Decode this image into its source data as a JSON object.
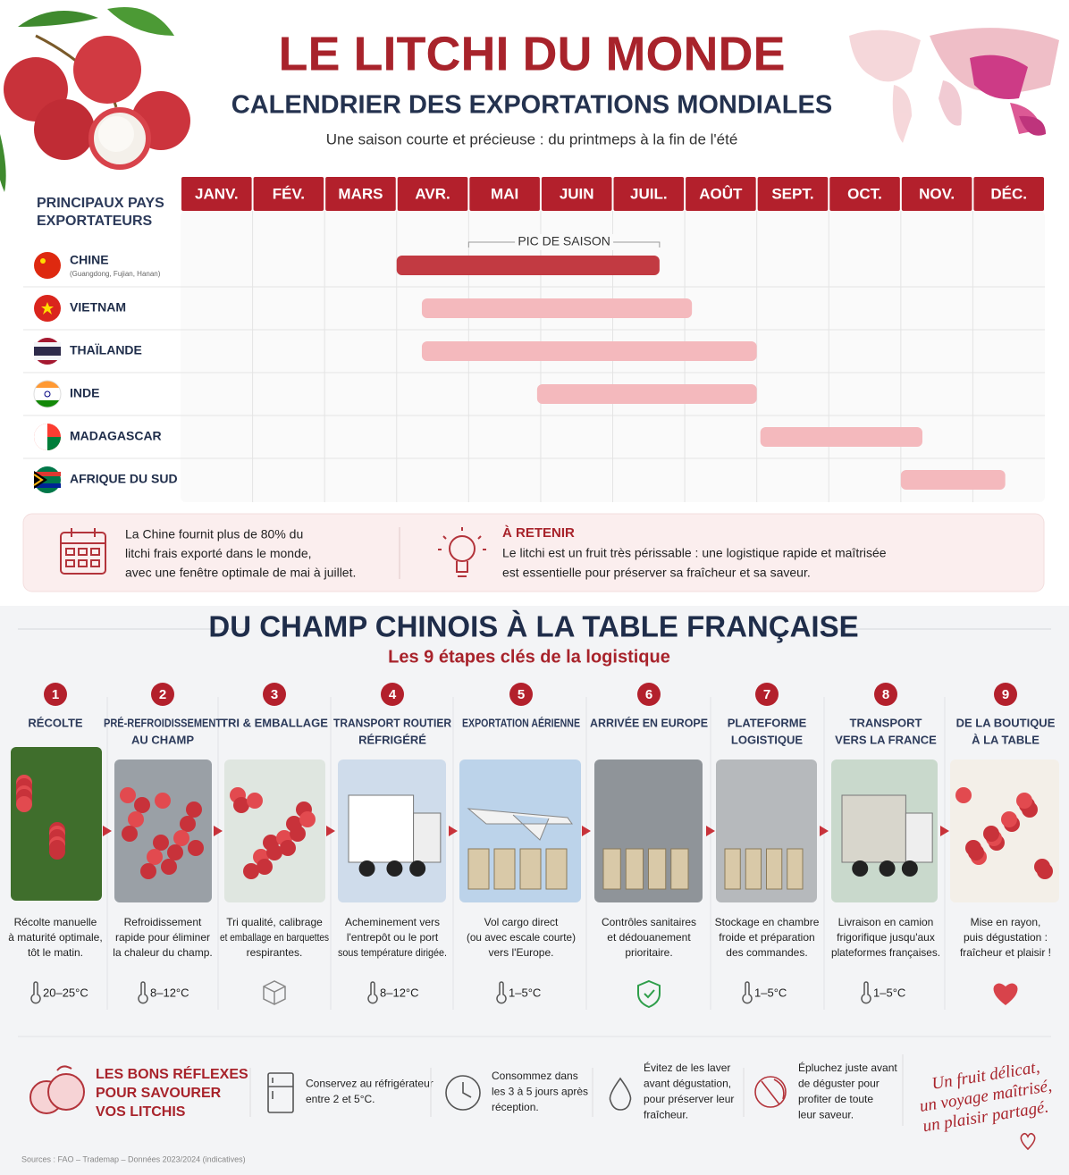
{
  "header": {
    "title": "LE LITCHI DU MONDE",
    "subtitle": "CALENDRIER DES EXPORTATIONS MONDIALES",
    "tagline": "Une saison courte et précieuse : du printmeps à la fin de l'été"
  },
  "calendar": {
    "heading": [
      "PRINCIPAUX PAYS",
      "EXPORTATEURS"
    ],
    "months": [
      "JANV.",
      "FÉV.",
      "MARS",
      "AVR.",
      "MAI",
      "JUIN",
      "JUIL.",
      "AOÛT",
      "SEPT.",
      "OCT.",
      "NOV.",
      "DÉC."
    ],
    "peak": {
      "label": "PIC DE SAISON",
      "start": 4.0,
      "end": 6.65
    },
    "countries": [
      {
        "name": "CHINE",
        "note": "(Guangdong, Fujian, Hanan)",
        "start": 3.0,
        "end": 6.65,
        "color": "#c23a42"
      },
      {
        "name": "VIETNAM",
        "start": 3.35,
        "end": 7.1,
        "color": "#f4b9bd"
      },
      {
        "name": "THAÏLANDE",
        "start": 3.35,
        "end": 8.0,
        "color": "#f4b9bd"
      },
      {
        "name": "INDE",
        "start": 4.95,
        "end": 8.0,
        "color": "#f4b9bd"
      },
      {
        "name": "MADAGASCAR",
        "start": 8.05,
        "end": 10.3,
        "color": "#f4b9bd"
      },
      {
        "name": "AFRIQUE DU SUD",
        "start": 10.0,
        "end": 11.45,
        "color": "#f4b9bd"
      }
    ]
  },
  "facts": {
    "fact": [
      "La Chine fournit plus de 80% du",
      "litchi frais exporté dans le monde,",
      "avec une fenêtre optimale de mai à juillet."
    ],
    "remember_title": "À RETENIR",
    "remember_text": [
      "Le litchi est un fruit très périssable : une logistique rapide et maîtrisée",
      "est essentielle pour préserver sa fraîcheur et sa saveur."
    ]
  },
  "logistics": {
    "title": "DU CHAMP CHINOIS À LA TABLE FRANÇAISE",
    "subtitle": "Les 9 étapes clés de la logistique",
    "steps": [
      {
        "number": "1",
        "title": [
          "RÉCOLTE"
        ],
        "text": [
          "Récolte manuelle",
          "à maturité optimale,",
          "tôt le matin."
        ],
        "temp": "20–25°C"
      },
      {
        "number": "2",
        "title": [
          "PRÉ-REFROIDISSEMENT",
          "AU CHAMP"
        ],
        "text": [
          "Refroidissement",
          "rapide pour éliminer",
          "la chaleur du champ."
        ],
        "temp": "8–12°C"
      },
      {
        "number": "3",
        "title": [
          "TRI & EMBALLAGE"
        ],
        "text": [
          "Tri qualité, calibrage",
          "et emballage en barquettes",
          "respirantes."
        ]
      },
      {
        "number": "4",
        "title": [
          "TRANSPORT ROUTIER",
          "RÉFRIGÉRÉ"
        ],
        "text": [
          "Acheminement vers",
          "l'entrepôt ou le port",
          "sous température dirigée."
        ],
        "temp": "8–12°C"
      },
      {
        "number": "5",
        "title": [
          "EXPORTATION AÉRIENNE"
        ],
        "text": [
          "Vol cargo direct",
          "(ou avec escale courte)",
          "vers l'Europe."
        ],
        "temp": "1–5°C"
      },
      {
        "number": "6",
        "title": [
          "ARRIVÉE EN EUROPE"
        ],
        "text": [
          "Contrôles sanitaires",
          "et dédouanement",
          "prioritaire."
        ]
      },
      {
        "number": "7",
        "title": [
          "PLATEFORME",
          "LOGISTIQUE"
        ],
        "text": [
          "Stockage en chambre",
          "froide et préparation",
          "des commandes."
        ],
        "temp": "1–5°C"
      },
      {
        "number": "8",
        "title": [
          "TRANSPORT",
          "VERS LA FRANCE"
        ],
        "text": [
          "Livraison en camion",
          "frigorifique jusqu'aux",
          "plateformes françaises."
        ],
        "temp": "1–5°C"
      },
      {
        "number": "9",
        "title": [
          "DE LA BOUTIQUE",
          "À LA TABLE"
        ],
        "text": [
          "Mise en rayon,",
          "puis dégustation :",
          "fraîcheur et plaisir !"
        ]
      }
    ]
  },
  "tips": {
    "title": [
      "LES BONS RÉFLEXES",
      "POUR SAVOURER",
      "VOS LITCHIS"
    ],
    "items": [
      [
        "Conservez au réfrigérateur",
        "entre 2 et 5°C."
      ],
      [
        "Consommez dans",
        "les 3 à 5 jours après",
        "réception."
      ],
      [
        "Évitez de les laver",
        "avant dégustation,",
        "pour préserver leur",
        "fraîcheur."
      ],
      [
        "Épluchez juste avant",
        "de déguster pour",
        "profiter de toute",
        "leur saveur."
      ]
    ],
    "slogan": [
      "Un fruit délicat,",
      "un voyage maîtrisé,",
      "un plaisir partagé."
    ]
  },
  "footer": {
    "source": "Sources : FAO – Trademap – Données 2023/2024 (indicatives)"
  }
}
